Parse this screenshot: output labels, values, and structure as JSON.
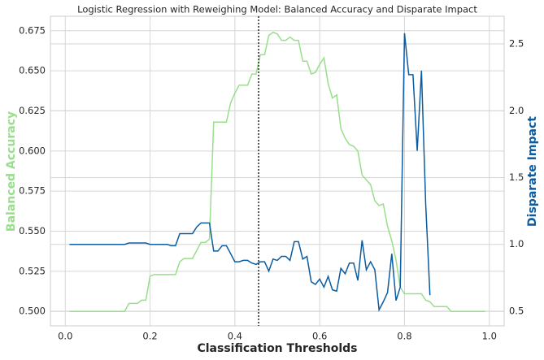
{
  "chart_data": {
    "type": "line",
    "title": "Logistic Regression with Reweighing Model: Balanced Accuracy and Disparate Impact",
    "xlabel": "Classification Thresholds",
    "ylabel": "Balanced Accuracy",
    "y2label": "Disparate Impact",
    "x": [
      0.01,
      0.02,
      0.03,
      0.04,
      0.05,
      0.06,
      0.07,
      0.08,
      0.09,
      0.1,
      0.11,
      0.12,
      0.13,
      0.14,
      0.15,
      0.16,
      0.17,
      0.18,
      0.19,
      0.2,
      0.21,
      0.22,
      0.23,
      0.24,
      0.25,
      0.26,
      0.27,
      0.28,
      0.29,
      0.3,
      0.31,
      0.32,
      0.33,
      0.34,
      0.35,
      0.36,
      0.37,
      0.38,
      0.39,
      0.4,
      0.41,
      0.42,
      0.43,
      0.44,
      0.45,
      0.46,
      0.47,
      0.48,
      0.49,
      0.5,
      0.51,
      0.52,
      0.53,
      0.54,
      0.55,
      0.56,
      0.57,
      0.58,
      0.59,
      0.6,
      0.61,
      0.62,
      0.63,
      0.64,
      0.65,
      0.66,
      0.67,
      0.68,
      0.69,
      0.7,
      0.71,
      0.72,
      0.73,
      0.74,
      0.75,
      0.76,
      0.77,
      0.78,
      0.79,
      0.8,
      0.81,
      0.82,
      0.83,
      0.84,
      0.85,
      0.86,
      0.87,
      0.88,
      0.89,
      0.9,
      0.91,
      0.92,
      0.93,
      0.94,
      0.95,
      0.96,
      0.97,
      0.98,
      0.99
    ],
    "series": [
      {
        "name": "Balanced Accuracy",
        "color": "#98df8a",
        "axis": "y",
        "values": [
          0.5,
          0.5,
          0.5,
          0.5,
          0.5,
          0.5,
          0.5,
          0.5,
          0.5,
          0.5,
          0.5,
          0.5,
          0.5,
          0.5,
          0.505,
          0.505,
          0.505,
          0.507,
          0.507,
          0.522,
          0.523,
          0.523,
          0.523,
          0.523,
          0.523,
          0.523,
          0.531,
          0.533,
          0.533,
          0.533,
          0.538,
          0.543,
          0.543,
          0.545,
          0.618,
          0.618,
          0.618,
          0.618,
          0.63,
          0.636,
          0.641,
          0.641,
          0.641,
          0.648,
          0.648,
          0.66,
          0.66,
          0.672,
          0.674,
          0.673,
          0.669,
          0.669,
          0.671,
          0.669,
          0.669,
          0.656,
          0.656,
          0.648,
          0.649,
          0.654,
          0.658,
          0.642,
          0.633,
          0.635,
          0.614,
          0.608,
          0.604,
          0.603,
          0.6,
          0.585,
          0.582,
          0.579,
          0.569,
          0.566,
          0.567,
          0.553,
          0.544,
          0.532,
          0.515,
          0.511,
          0.511,
          0.511,
          0.511,
          0.511,
          0.507,
          0.506,
          0.503,
          0.503,
          0.503,
          0.503,
          0.5,
          0.5,
          0.5,
          0.5,
          0.5,
          0.5,
          0.5,
          0.5,
          0.5
        ]
      },
      {
        "name": "Disparate Impact",
        "color": "#0b5ca0",
        "axis": "y2",
        "values": [
          1.0,
          1.0,
          1.0,
          1.0,
          1.0,
          1.0,
          1.0,
          1.0,
          1.0,
          1.0,
          1.0,
          1.0,
          1.0,
          1.0,
          1.01,
          1.01,
          1.01,
          1.01,
          1.01,
          1.0,
          1.0,
          1.0,
          1.0,
          1.0,
          0.99,
          0.99,
          1.08,
          1.08,
          1.08,
          1.08,
          1.13,
          1.16,
          1.16,
          1.16,
          0.95,
          0.95,
          0.99,
          0.99,
          0.93,
          0.87,
          0.87,
          0.88,
          0.88,
          0.86,
          0.85,
          0.87,
          0.87,
          0.8,
          0.89,
          0.88,
          0.91,
          0.91,
          0.88,
          1.02,
          1.02,
          0.89,
          0.91,
          0.72,
          0.7,
          0.74,
          0.68,
          0.76,
          0.66,
          0.65,
          0.82,
          0.78,
          0.86,
          0.86,
          0.73,
          1.03,
          0.81,
          0.87,
          0.81,
          0.51,
          0.57,
          0.64,
          0.93,
          0.58,
          0.68,
          2.58,
          2.27,
          2.27,
          1.7,
          2.3,
          1.3,
          0.62,
          null,
          null,
          null,
          null,
          null,
          null,
          null,
          null,
          null,
          null,
          null,
          null,
          null
        ]
      }
    ],
    "vline_x": 0.456,
    "xlim": [
      -0.035,
      1.035
    ],
    "xticks": [
      {
        "value": 0,
        "label": "0.0"
      },
      0.2,
      0.4,
      0.6,
      0.8,
      {
        "value": 1,
        "label": "1.0"
      }
    ],
    "ylim": [
      0.491,
      0.684
    ],
    "yticks": [
      {
        "value": 0.5,
        "label": "0.500"
      },
      {
        "value": 0.525,
        "label": "0.525"
      },
      {
        "value": 0.55,
        "label": "0.550"
      },
      {
        "value": 0.575,
        "label": "0.575"
      },
      {
        "value": 0.6,
        "label": "0.600"
      },
      {
        "value": 0.625,
        "label": "0.625"
      },
      {
        "value": 0.65,
        "label": "0.650"
      },
      {
        "value": 0.675,
        "label": "0.675"
      }
    ],
    "y2lim": [
      0.39,
      2.707
    ],
    "y2ticks": [
      0.5,
      {
        "value": 1,
        "label": "1.0"
      },
      1.5,
      {
        "value": 2,
        "label": "2.0"
      },
      2.5
    ],
    "grid": true
  }
}
